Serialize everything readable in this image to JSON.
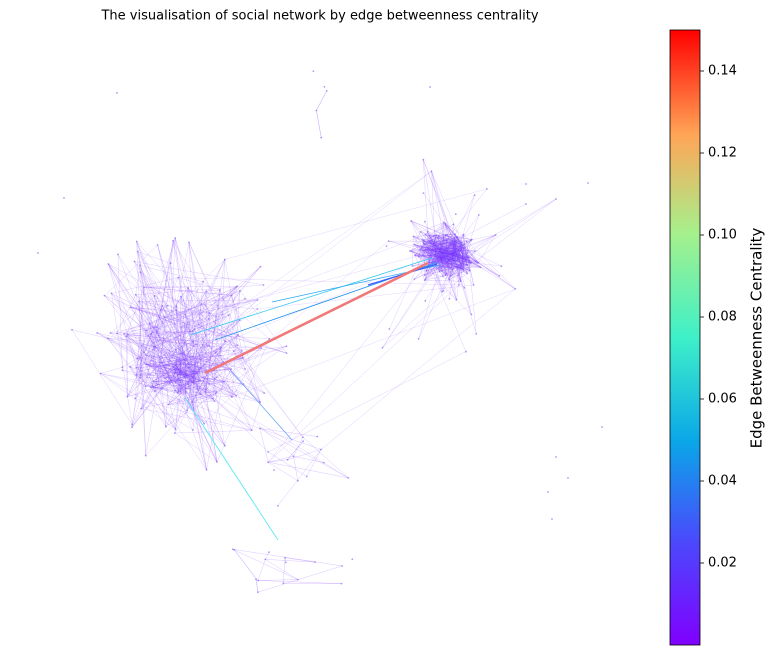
{
  "chart_data": {
    "type": "network",
    "title": "The visualisation of social network by edge betweenness centrality",
    "colorbar_label": "Edge Betweenness Centrality",
    "colormap": "rainbow",
    "clim": [
      0,
      0.15
    ],
    "cticks": [
      0.02,
      0.04,
      0.06,
      0.08,
      {
        "value": 0.1,
        "label": "0.10"
      },
      0.12,
      0.14
    ]
  }
}
